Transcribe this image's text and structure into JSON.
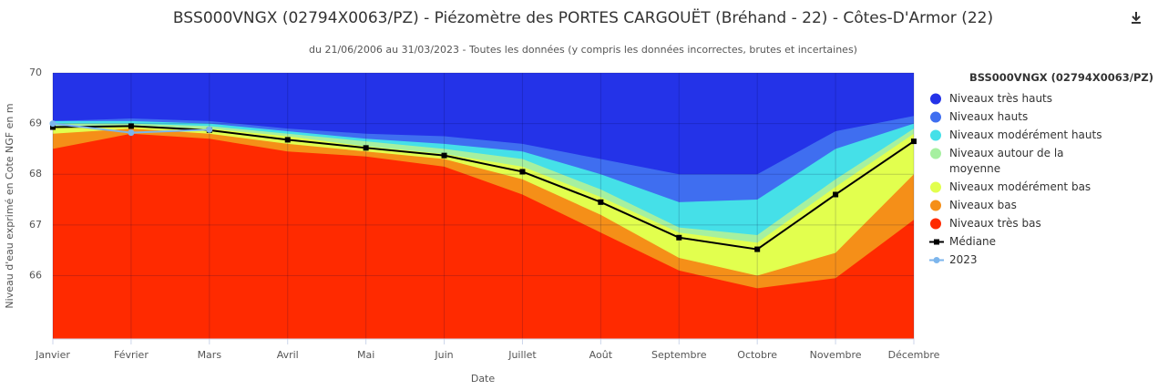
{
  "chart_data": {
    "type": "area",
    "title": "BSS000VNGX (02794X0063/PZ) - Piézomètre des PORTES CARGOUËT (Bréhand - 22) - Côtes-D'Armor (22)",
    "subtitle": "du 21/06/2006 au 31/03/2023 - Toutes les données (y compris les données incorrectes, brutes et incertaines)",
    "x_label": "Date",
    "y_label": "Niveau d'eau exprimé en Cote NGF en m",
    "legend_title": "BSS000VNGX (02794X0063/PZ)",
    "legend": "right",
    "grid": true,
    "categories": [
      "Janvier",
      "Février",
      "Mars",
      "Avril",
      "Mai",
      "Juin",
      "Juillet",
      "Août",
      "Septembre",
      "Octobre",
      "Novembre",
      "Décembre"
    ],
    "ylim": [
      64.75,
      70
    ],
    "yticks": [
      66,
      67,
      68,
      69,
      70
    ],
    "series": [
      {
        "name": "Niveaux très hauts",
        "color": "#2433e8",
        "type": "area",
        "values": [
          70,
          70,
          70,
          70,
          70,
          70,
          70,
          70,
          70,
          70,
          70,
          70
        ]
      },
      {
        "name": "Niveaux hauts",
        "color": "#3f6ef0",
        "type": "area",
        "values": [
          69.05,
          69.1,
          69.05,
          68.9,
          68.8,
          68.75,
          68.6,
          68.3,
          68.0,
          68.0,
          68.85,
          69.15
        ]
      },
      {
        "name": "Niveaux modérément hauts",
        "color": "#45e0e8",
        "type": "area",
        "values": [
          69.05,
          69.05,
          69.0,
          68.85,
          68.7,
          68.6,
          68.45,
          68.0,
          67.45,
          67.5,
          68.5,
          69.0
        ]
      },
      {
        "name": "Niveaux autour de la moyenne",
        "color": "#a6f0a0",
        "type": "area",
        "values": [
          69.0,
          69.0,
          68.95,
          68.8,
          68.65,
          68.5,
          68.3,
          67.7,
          66.95,
          66.8,
          67.9,
          68.9
        ]
      },
      {
        "name": "Niveaux modérément bas",
        "color": "#e2ff4e",
        "type": "area",
        "values": [
          68.95,
          68.95,
          68.9,
          68.75,
          68.55,
          68.4,
          68.15,
          67.55,
          66.85,
          66.65,
          67.75,
          68.8
        ]
      },
      {
        "name": "Niveaux bas",
        "color": "#f58f18",
        "type": "area",
        "values": [
          68.8,
          68.9,
          68.8,
          68.6,
          68.45,
          68.3,
          67.9,
          67.2,
          66.35,
          66.0,
          66.45,
          68.0
        ]
      },
      {
        "name": "Niveaux très bas",
        "color": "#ff2a00",
        "type": "area",
        "values": [
          68.5,
          68.8,
          68.7,
          68.45,
          68.35,
          68.15,
          67.6,
          66.85,
          66.1,
          65.75,
          65.95,
          67.1
        ]
      },
      {
        "name": "Médiane",
        "color": "#000000",
        "type": "line",
        "marker": "square",
        "values": [
          68.93,
          68.95,
          68.87,
          68.68,
          68.52,
          68.37,
          68.05,
          67.45,
          66.75,
          66.52,
          67.6,
          68.65
        ]
      },
      {
        "name": "2023",
        "color": "#7cb5ec",
        "type": "line",
        "marker": "circle",
        "values": [
          69.0,
          68.82,
          68.88,
          null,
          null,
          null,
          null,
          null,
          null,
          null,
          null,
          null
        ]
      }
    ]
  }
}
